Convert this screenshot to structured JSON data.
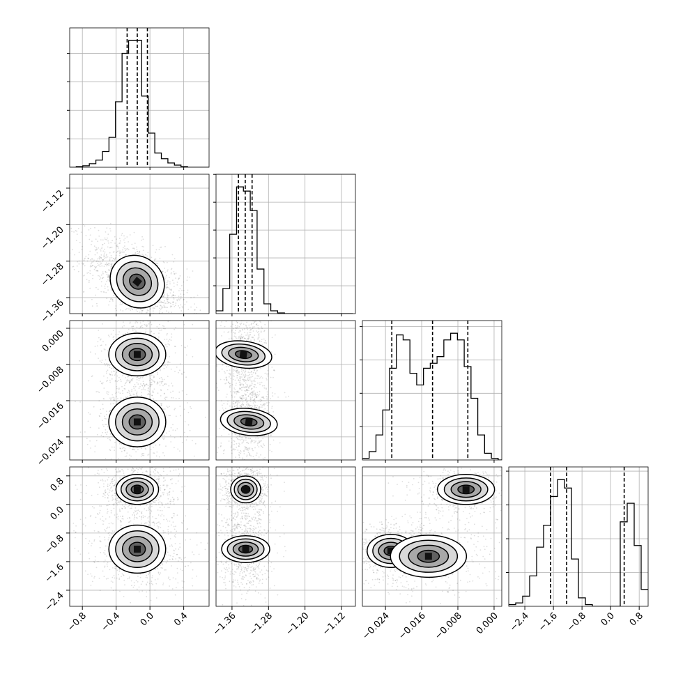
{
  "chart_data": {
    "type": "corner",
    "parameters": 4,
    "grid": true,
    "quantile_lines": "dashed",
    "axes": [
      {
        "index": 0,
        "range": [
          -0.95,
          0.7
        ],
        "ticks": [
          -0.8,
          -0.4,
          0.0,
          0.4
        ],
        "tick_labels": [
          "−0.8",
          "−0.4",
          "0.0",
          "0.4"
        ]
      },
      {
        "index": 1,
        "range": [
          -1.395,
          -1.0895
        ],
        "ticks": [
          -1.36,
          -1.28,
          -1.2,
          -1.12
        ],
        "tick_labels": [
          "−1.36",
          "−1.28",
          "−1.20",
          "−1.12"
        ]
      },
      {
        "index": 2,
        "range": [
          -0.0291,
          0.0017
        ],
        "ticks": [
          -0.024,
          -0.016,
          -0.008,
          0.0
        ],
        "tick_labels": [
          "−0.024",
          "−0.016",
          "−0.008",
          "0.000"
        ]
      },
      {
        "index": 3,
        "range": [
          -2.85,
          1.05
        ],
        "ticks": [
          -2.4,
          -1.6,
          -0.8,
          0.0,
          0.8
        ],
        "tick_labels": [
          "−2.4",
          "−1.6",
          "−0.8",
          "0.0",
          "0.8"
        ]
      }
    ],
    "histograms": [
      {
        "param": 0,
        "bin_edges": [
          -0.95,
          -0.8725,
          -0.795,
          -0.7175,
          -0.64,
          -0.5625,
          -0.485,
          -0.4075,
          -0.33,
          -0.2525,
          -0.175,
          -0.0975,
          -0.02,
          0.0575,
          0.135,
          0.2125,
          0.29,
          0.3675,
          0.445,
          0.5225,
          0.6,
          0.7
        ],
        "counts": [
          0,
          0.5,
          1,
          2.5,
          5,
          11,
          21,
          46,
          80,
          89,
          89,
          50,
          24,
          10,
          6,
          3,
          1.5,
          0.5,
          0,
          0,
          0
        ],
        "quantiles": [
          -0.27,
          -0.15,
          -0.03
        ]
      },
      {
        "param": 1,
        "bin_edges": [
          -1.395,
          -1.38,
          -1.365,
          -1.35,
          -1.335,
          -1.32,
          -1.305,
          -1.29,
          -1.275,
          -1.26,
          -1.245,
          -1.23,
          -1.215,
          -1.2,
          -1.185,
          -1.17,
          -1.155,
          -1.14,
          -1.125,
          -1.11,
          -1.095
        ],
        "counts": [
          2,
          18,
          57,
          91,
          88,
          74,
          32,
          7,
          2,
          0.5,
          0,
          0,
          0,
          0,
          0,
          0,
          0,
          0,
          0,
          0
        ],
        "quantiles": [
          -1.346,
          -1.331,
          -1.316
        ]
      },
      {
        "param": 2,
        "bin_edges": [
          -0.0291,
          -0.0276,
          -0.0261,
          -0.0246,
          -0.0231,
          -0.0216,
          -0.0201,
          -0.0186,
          -0.0171,
          -0.0156,
          -0.0141,
          -0.0126,
          -0.0111,
          -0.0096,
          -0.0081,
          -0.0066,
          -0.0051,
          -0.0036,
          -0.0021,
          -0.0006,
          0.0009,
          0.0017
        ],
        "counts": [
          1,
          5,
          15,
          30,
          55,
          75,
          72,
          52,
          45,
          55,
          58,
          62,
          72,
          76,
          72,
          56,
          37,
          15,
          4,
          1,
          0
        ],
        "quantiles": [
          -0.0226,
          -0.0136,
          -0.0058
        ]
      },
      {
        "param": 3,
        "bin_edges": [
          -2.85,
          -2.655,
          -2.46,
          -2.265,
          -2.07,
          -1.875,
          -1.68,
          -1.485,
          -1.29,
          -1.095,
          -0.9,
          -0.705,
          -0.51,
          -0.315,
          -0.12,
          0.075,
          0.27,
          0.465,
          0.66,
          0.855,
          1.05
        ],
        "counts": [
          1,
          2,
          6,
          18,
          35,
          48,
          65,
          75,
          70,
          28,
          5,
          1,
          0,
          0,
          0,
          0,
          50,
          61,
          36,
          10
        ],
        "quantiles": [
          -1.68,
          -1.23,
          0.38
        ]
      }
    ],
    "joint_modes": [
      {
        "x_param": 0,
        "y_param": 1,
        "centers": [
          [
            -0.15,
            -1.325
          ]
        ],
        "spread": [
          [
            0.16,
            0.026
          ]
        ],
        "rho": [
          -0.55
        ]
      },
      {
        "x_param": 0,
        "y_param": 2,
        "centers": [
          [
            -0.15,
            -0.0058
          ],
          [
            -0.15,
            -0.0207
          ]
        ],
        "spread": [
          [
            0.12,
            0.003
          ],
          [
            0.14,
            0.003
          ]
        ],
        "rho": [
          0,
          0
        ]
      },
      {
        "x_param": 1,
        "y_param": 2,
        "centers": [
          [
            -1.335,
            -0.0058
          ],
          [
            -1.323,
            -0.0207
          ]
        ],
        "spread": [
          [
            0.014,
            0.003
          ],
          [
            0.014,
            0.003
          ]
        ],
        "rho": [
          0.2,
          0.2
        ]
      },
      {
        "x_param": 0,
        "y_param": 3,
        "centers": [
          [
            -0.15,
            0.42
          ],
          [
            -0.15,
            -1.25
          ]
        ],
        "spread": [
          [
            0.12,
            0.2
          ],
          [
            0.16,
            0.32
          ]
        ],
        "rho": [
          0,
          0
        ]
      },
      {
        "x_param": 1,
        "y_param": 3,
        "centers": [
          [
            -1.33,
            0.42
          ],
          [
            -1.33,
            -1.25
          ]
        ],
        "spread": [
          [
            0.014,
            0.2
          ],
          [
            0.014,
            0.32
          ]
        ],
        "rho": [
          0,
          0
        ]
      },
      {
        "x_param": 2,
        "y_param": 3,
        "centers": [
          [
            -0.0062,
            0.42
          ],
          [
            -0.0228,
            -1.3
          ],
          [
            -0.0145,
            -1.45
          ]
        ],
        "spread": [
          [
            0.003,
            0.2
          ],
          [
            0.0025,
            0.22
          ],
          [
            0.004,
            0.28
          ]
        ],
        "rho": [
          0,
          0,
          0
        ]
      }
    ]
  }
}
